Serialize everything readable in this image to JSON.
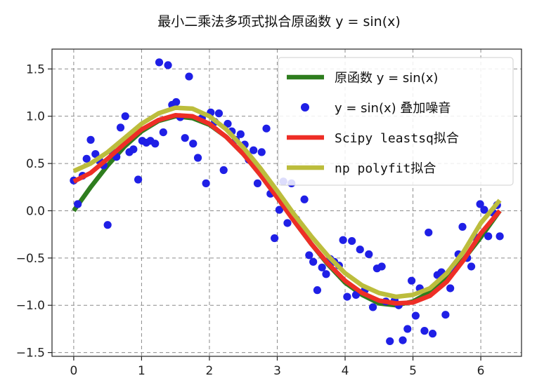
{
  "chart_data": {
    "type": "line",
    "title": "最小二乘法多项式拟合原函数 y = sin(x)",
    "xlabel": "",
    "ylabel": "",
    "xlim": [
      -0.32,
      6.6
    ],
    "ylim": [
      -1.54,
      1.71
    ],
    "x_ticks": [
      0,
      1,
      2,
      3,
      4,
      5,
      6
    ],
    "y_ticks": [
      -1.5,
      -1.0,
      -0.5,
      0.0,
      0.5,
      1.0,
      1.5
    ],
    "x_tick_labels": [
      "0",
      "1",
      "2",
      "3",
      "4",
      "5",
      "6"
    ],
    "y_tick_labels": [
      "−1.5",
      "−1.0",
      "−0.5",
      "0.0",
      "0.5",
      "1.0",
      "1.5"
    ],
    "grid": true,
    "grid_style": "dashed",
    "legend_position": "upper-right",
    "series": [
      {
        "name": "原函数 y = sin(x)",
        "kind": "line",
        "color": "#2e7d1e",
        "x": [
          0,
          0.25,
          0.5,
          0.75,
          1.0,
          1.25,
          1.5,
          1.75,
          2.0,
          2.25,
          2.5,
          2.75,
          3.0,
          3.25,
          3.5,
          3.75,
          4.0,
          4.25,
          4.5,
          4.75,
          5.0,
          5.25,
          5.5,
          5.75,
          6.0,
          6.28
        ],
        "y": [
          0.0,
          0.25,
          0.48,
          0.68,
          0.84,
          0.95,
          1.0,
          0.98,
          0.91,
          0.78,
          0.6,
          0.38,
          0.14,
          -0.11,
          -0.35,
          -0.57,
          -0.76,
          -0.89,
          -0.98,
          -1.0,
          -0.96,
          -0.86,
          -0.71,
          -0.51,
          -0.28,
          0.0
        ]
      },
      {
        "name": "y = sin(x) 叠加噪音",
        "kind": "scatter",
        "color": "#1f1fe6",
        "x": [
          0.0,
          0.06,
          0.13,
          0.19,
          0.25,
          0.32,
          0.38,
          0.44,
          0.5,
          0.57,
          0.63,
          0.69,
          0.76,
          0.82,
          0.88,
          0.95,
          1.01,
          1.07,
          1.13,
          1.2,
          1.26,
          1.32,
          1.39,
          1.45,
          1.51,
          1.57,
          1.64,
          1.7,
          1.76,
          1.83,
          1.89,
          1.95,
          2.02,
          2.08,
          2.14,
          2.21,
          2.27,
          2.33,
          2.39,
          2.46,
          2.52,
          2.58,
          2.65,
          2.71,
          2.77,
          2.84,
          2.9,
          2.96,
          3.03,
          3.09,
          3.15,
          3.21,
          3.28,
          3.34,
          3.4,
          3.47,
          3.53,
          3.59,
          3.66,
          3.72,
          3.78,
          3.84,
          3.91,
          3.97,
          4.03,
          4.1,
          4.16,
          4.22,
          4.29,
          4.35,
          4.41,
          4.47,
          4.54,
          4.6,
          4.66,
          4.73,
          4.79,
          4.85,
          4.92,
          4.98,
          5.04,
          5.1,
          5.17,
          5.23,
          5.29,
          5.36,
          5.42,
          5.48,
          5.55,
          5.61,
          5.67,
          5.73,
          5.8,
          5.86,
          5.92,
          5.99,
          6.05,
          6.11,
          6.18,
          6.24,
          6.28
        ],
        "y": [
          0.32,
          0.07,
          0.37,
          0.55,
          0.75,
          0.6,
          0.53,
          0.48,
          -0.15,
          0.62,
          0.57,
          0.88,
          1.0,
          0.62,
          0.65,
          0.33,
          0.74,
          0.72,
          0.74,
          0.71,
          1.57,
          0.83,
          1.54,
          1.12,
          1.15,
          0.99,
          0.77,
          1.42,
          0.71,
          0.56,
          0.98,
          0.29,
          1.04,
          0.94,
          1.03,
          0.43,
          0.92,
          0.84,
          0.75,
          0.81,
          0.7,
          0.54,
          0.64,
          0.29,
          0.62,
          0.87,
          0.18,
          -0.29,
          0.01,
          0.31,
          -0.13,
          0.29,
          -0.09,
          -0.16,
          0.12,
          -0.47,
          -0.54,
          -0.84,
          -0.6,
          -0.67,
          -0.51,
          -0.54,
          -0.58,
          -0.31,
          -0.91,
          -0.32,
          -0.89,
          -0.41,
          -0.84,
          -0.46,
          -1.02,
          -0.61,
          -0.59,
          -0.96,
          -1.38,
          -0.95,
          -1.0,
          -1.37,
          -1.25,
          -0.74,
          -1.11,
          -0.82,
          -1.27,
          -0.23,
          -1.3,
          -0.68,
          -0.65,
          -1.1,
          -0.82,
          -0.62,
          -0.46,
          -0.17,
          -0.5,
          -0.59,
          -0.28,
          0.07,
          0.01,
          -0.27,
          -0.02,
          0.06,
          -0.27
        ]
      },
      {
        "name": "Scipy leastsq拟合",
        "kind": "line",
        "color": "#ee2e26",
        "x": [
          0,
          0.25,
          0.5,
          0.75,
          1.0,
          1.25,
          1.5,
          1.75,
          2.0,
          2.25,
          2.5,
          2.75,
          3.0,
          3.25,
          3.5,
          3.75,
          4.0,
          4.25,
          4.5,
          4.75,
          5.0,
          5.25,
          5.5,
          5.75,
          6.0,
          6.28
        ],
        "y": [
          0.31,
          0.4,
          0.55,
          0.71,
          0.86,
          0.96,
          1.01,
          1.0,
          0.92,
          0.78,
          0.6,
          0.38,
          0.14,
          -0.11,
          -0.35,
          -0.56,
          -0.74,
          -0.87,
          -0.95,
          -0.98,
          -0.97,
          -0.9,
          -0.75,
          -0.52,
          -0.24,
          0.0
        ]
      },
      {
        "name": "np polyfit拟合",
        "kind": "line",
        "color": "#bcbd3c",
        "x": [
          0,
          0.25,
          0.5,
          0.75,
          1.0,
          1.25,
          1.5,
          1.75,
          2.0,
          2.25,
          2.5,
          2.75,
          3.0,
          3.25,
          3.5,
          3.75,
          4.0,
          4.25,
          4.5,
          4.75,
          5.0,
          5.25,
          5.5,
          5.75,
          6.0,
          6.28
        ],
        "y": [
          0.42,
          0.5,
          0.62,
          0.77,
          0.92,
          1.03,
          1.09,
          1.08,
          1.0,
          0.86,
          0.67,
          0.45,
          0.21,
          -0.04,
          -0.27,
          -0.48,
          -0.66,
          -0.79,
          -0.87,
          -0.91,
          -0.89,
          -0.82,
          -0.66,
          -0.43,
          -0.13,
          0.11
        ]
      }
    ]
  }
}
